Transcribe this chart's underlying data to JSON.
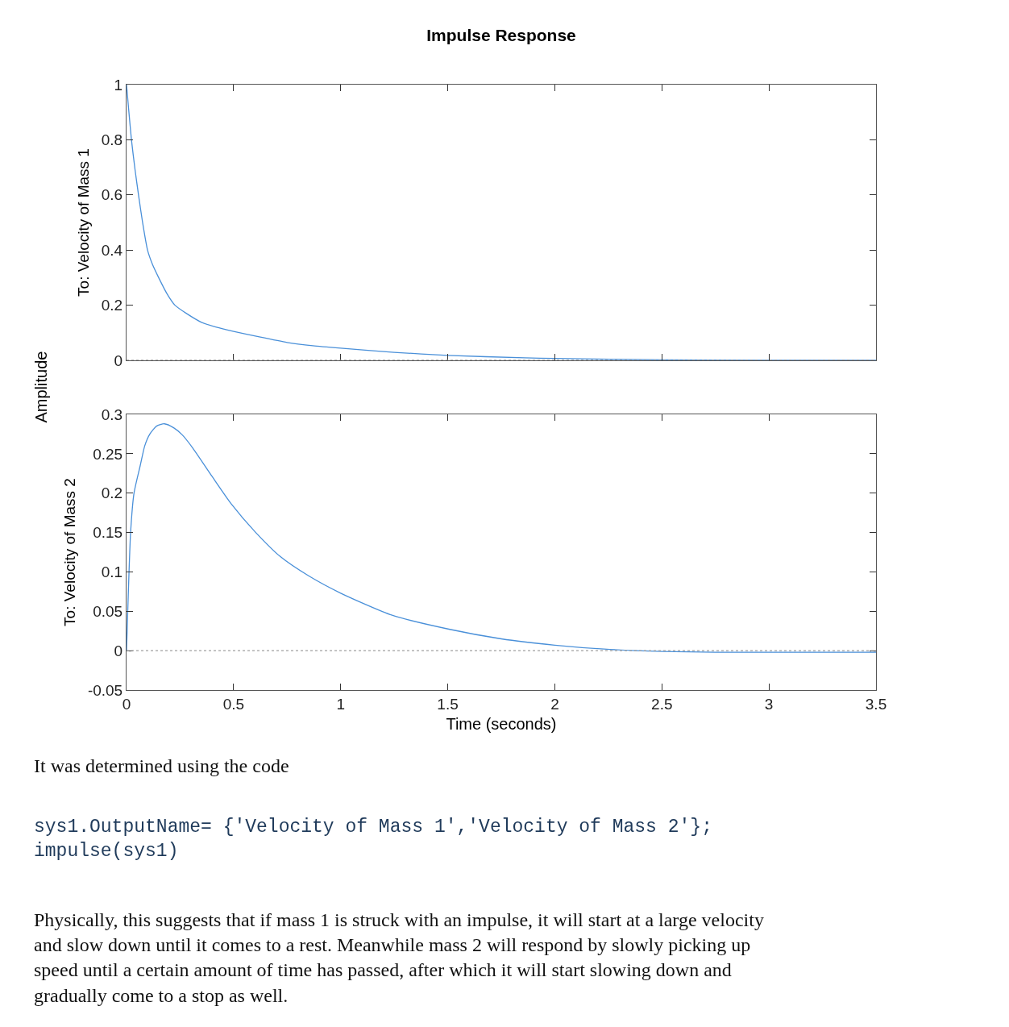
{
  "chart_data": [
    {
      "type": "line",
      "title": "Impulse Response",
      "ylabel": "To: Velocity of Mass 1",
      "annotations": [
        "Amplitude"
      ],
      "x": [
        0,
        0.01,
        0.023,
        0.04,
        0.056,
        0.075,
        0.098,
        0.12,
        0.15,
        0.19,
        0.226,
        0.28,
        0.35,
        0.42,
        0.5,
        0.62,
        0.75,
        0.87,
        1.0,
        1.25,
        1.5,
        1.86,
        2.0,
        2.5,
        3.0,
        3.5
      ],
      "series": [
        {
          "color": "#4a90d9",
          "values": [
            1,
            0.91,
            0.8,
            0.69,
            0.6,
            0.5,
            0.4,
            0.35,
            0.3,
            0.24,
            0.2,
            0.17,
            0.138,
            0.12,
            0.105,
            0.085,
            0.065,
            0.053,
            0.044,
            0.029,
            0.018,
            0.009,
            0.007,
            0.002,
            0.0,
            0.0
          ]
        }
      ],
      "xlim": [
        0,
        3.5
      ],
      "xticks": [
        0,
        0.5,
        1,
        1.5,
        2,
        2.5,
        3,
        3.5
      ],
      "ylim": [
        0,
        1
      ],
      "yticks": [
        0,
        0.2,
        0.4,
        0.6,
        0.8,
        1
      ],
      "ref_lines": [
        {
          "axis": "y",
          "value": 0,
          "color": "#a0a0a0",
          "line_style": "dotted"
        }
      ],
      "tick_labels": "y",
      "marker": "none",
      "line_style": "solid"
    },
    {
      "type": "line",
      "xlabel": "Time (seconds)",
      "ylabel": "To: Velocity of Mass 2",
      "annotations": [
        "It was determined using the code",
        "sys1.OutputName= {'Velocity of Mass 1','Velocity of Mass 2'};\nimpulse(sys1)",
        "Physically, this suggests that if mass 1 is struck with an impulse, it will start at a large velocity\nand slow down until it comes to a rest. Meanwhile mass 2 will respond by slowly picking up\nspeed until a certain amount of time has passed, after which it will start slowing down and\ngradually come to a stop as well."
      ],
      "x": [
        0,
        0.008,
        0.019,
        0.035,
        0.064,
        0.085,
        0.109,
        0.14,
        0.177,
        0.22,
        0.26,
        0.31,
        0.4,
        0.49,
        0.6,
        0.72,
        0.85,
        1.0,
        1.24,
        1.51,
        1.75,
        2.0,
        2.23,
        2.5,
        2.75,
        3.0,
        3.5
      ],
      "series": [
        {
          "color": "#4a90d9",
          "values": [
            0,
            0.07,
            0.15,
            0.2,
            0.235,
            0.26,
            0.275,
            0.285,
            0.288,
            0.283,
            0.274,
            0.257,
            0.221,
            0.186,
            0.151,
            0.119,
            0.095,
            0.073,
            0.045,
            0.027,
            0.015,
            0.007,
            0.002,
            -0.001,
            -0.002,
            -0.002,
            -0.002
          ]
        }
      ],
      "xlim": [
        0,
        3.5
      ],
      "xticks": [
        0,
        0.5,
        1,
        1.5,
        2,
        2.5,
        3,
        3.5
      ],
      "ylim": [
        -0.05,
        0.3
      ],
      "yticks": [
        -0.05,
        0,
        0.05,
        0.1,
        0.15,
        0.2,
        0.25,
        0.3
      ],
      "ref_lines": [
        {
          "axis": "y",
          "value": 0,
          "color": "#a0a0a0",
          "line_style": "dotted"
        }
      ],
      "marker": "none",
      "line_style": "solid"
    }
  ]
}
